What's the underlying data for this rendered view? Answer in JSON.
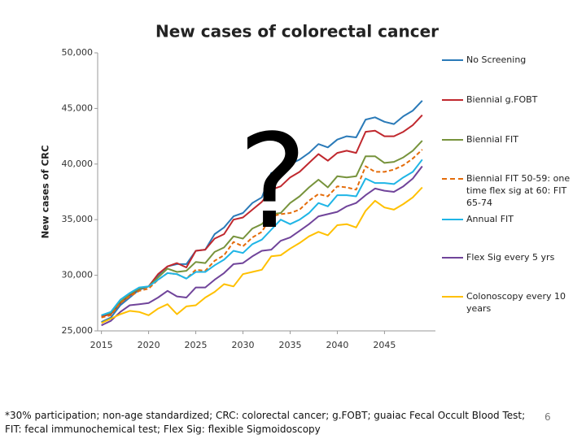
{
  "chart_data": {
    "type": "line",
    "title": "New cases of colorectal cancer",
    "y_label": "New cases of CRC",
    "annotation": "?",
    "x": [
      2015,
      2016,
      2017,
      2018,
      2019,
      2020,
      2021,
      2022,
      2023,
      2024,
      2025,
      2026,
      2027,
      2028,
      2029,
      2030,
      2031,
      2032,
      2033,
      2034,
      2035,
      2036,
      2037,
      2038,
      2039,
      2040,
      2041,
      2042,
      2043,
      2044,
      2045,
      2046,
      2047,
      2048,
      2049
    ],
    "xlim": [
      2014.6,
      2050.4
    ],
    "xticks": [
      2015,
      2020,
      2025,
      2030,
      2035,
      2040,
      2045
    ],
    "ylim": [
      25000,
      50000
    ],
    "yticks": [
      {
        "value": 25000,
        "label": "25,000"
      },
      {
        "value": 30000,
        "label": "30,000"
      },
      {
        "value": 35000,
        "label": "35,000"
      },
      {
        "value": 40000,
        "label": "40,000"
      },
      {
        "value": 45000,
        "label": "45,000"
      },
      {
        "value": 50000,
        "label": "50,000"
      }
    ],
    "grid": false,
    "legend": "right",
    "series": [
      {
        "name": "No Screening",
        "color": "#2a7ab8",
        "line_style": "solid",
        "values": [
          25800,
          26200,
          27300,
          28000,
          28700,
          29000,
          30000,
          30800,
          31000,
          31000,
          32200,
          32300,
          33700,
          34300,
          35300,
          35600,
          36500,
          37000,
          39200,
          39400,
          40000,
          40400,
          41000,
          41800,
          41500,
          42200,
          42500,
          42400,
          44000,
          44200,
          43800,
          43600,
          44300,
          44800,
          45700
        ]
      },
      {
        "name": "Biennial g.FOBT",
        "color": "#c0282e",
        "line_style": "solid",
        "values": [
          26300,
          26500,
          27500,
          28200,
          28800,
          29000,
          30100,
          30800,
          31100,
          30700,
          32200,
          32300,
          33300,
          33700,
          35000,
          35200,
          35900,
          36600,
          37700,
          38000,
          38800,
          39300,
          40100,
          40900,
          40300,
          41000,
          41200,
          41000,
          42900,
          43000,
          42500,
          42500,
          42900,
          43500,
          44400
        ]
      },
      {
        "name": "Biennial FIT",
        "color": "#77933c",
        "line_style": "solid",
        "values": [
          26400,
          26600,
          27600,
          28300,
          28800,
          29000,
          29800,
          30600,
          30300,
          30400,
          31200,
          31100,
          32100,
          32500,
          33500,
          33300,
          34200,
          34600,
          35500,
          35600,
          36500,
          37100,
          37900,
          38600,
          37900,
          38900,
          38800,
          38900,
          40700,
          40700,
          40100,
          40200,
          40600,
          41200,
          42100
        ]
      },
      {
        "name": "Biennial FIT 50-59: one time flex sig at 60: FIT 65-74",
        "color": "#e46c0a",
        "line_style": "dashed",
        "values": [
          26200,
          26400,
          27500,
          28100,
          28600,
          28800,
          29600,
          30200,
          30100,
          29700,
          30500,
          30400,
          31300,
          31800,
          33000,
          32600,
          33400,
          33900,
          35300,
          35500,
          35600,
          35900,
          36700,
          37300,
          37100,
          38000,
          37900,
          37700,
          39800,
          39300,
          39300,
          39500,
          39900,
          40500,
          41300
        ]
      },
      {
        "name": "Annual FIT",
        "color": "#1fb5e6",
        "line_style": "solid",
        "values": [
          26400,
          26700,
          27800,
          28400,
          28900,
          29000,
          29600,
          30200,
          30100,
          29700,
          30300,
          30300,
          30900,
          31400,
          32200,
          32000,
          32800,
          33200,
          34100,
          35000,
          34600,
          35000,
          35600,
          36500,
          36200,
          37200,
          37200,
          37100,
          38700,
          38300,
          38300,
          38200,
          38800,
          39300,
          40400
        ]
      },
      {
        "name": "Flex Sig every 5 yrs",
        "color": "#70449a",
        "line_style": "solid",
        "values": [
          25500,
          25900,
          26700,
          27300,
          27400,
          27500,
          28000,
          28600,
          28100,
          28000,
          28900,
          28900,
          29600,
          30200,
          31000,
          31100,
          31700,
          32200,
          32300,
          33100,
          33400,
          34000,
          34600,
          35300,
          35500,
          35700,
          36200,
          36500,
          37200,
          37800,
          37600,
          37500,
          38000,
          38700,
          39800
        ]
      },
      {
        "name": "Colonoscopy every 10 years",
        "color": "#ffc000",
        "line_style": "solid",
        "values": [
          25700,
          26100,
          26500,
          26800,
          26700,
          26400,
          27000,
          27400,
          26500,
          27200,
          27300,
          28000,
          28500,
          29200,
          29000,
          30100,
          30300,
          30500,
          31700,
          31800,
          32400,
          32900,
          33500,
          33900,
          33600,
          34500,
          34600,
          34300,
          35800,
          36700,
          36100,
          35900,
          36400,
          37000,
          37900
        ]
      }
    ]
  },
  "footnote": "*30% participation; non-age standardized; CRC: colorectal cancer; g.FOBT; guaiac Fecal Occult Blood Test; FIT: fecal immunochemical test; Flex Sig: flexible Sigmoidoscopy",
  "page_number": "6"
}
